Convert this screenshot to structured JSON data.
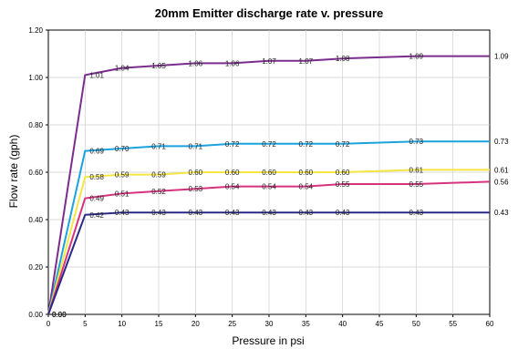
{
  "chart_data": {
    "type": "line",
    "title": "20mm Emitter discharge rate v. pressure",
    "xlabel": "Pressure in psi",
    "ylabel": "Flow rate (gph)",
    "xlim": [
      0,
      60
    ],
    "ylim": [
      0,
      1.2
    ],
    "xticks": [
      "0",
      "5",
      "10",
      "15",
      "20",
      "25",
      "30",
      "35",
      "40",
      "45",
      "50",
      "55",
      "60"
    ],
    "yticks": [
      "0.00",
      "0.20",
      "0.40",
      "0.60",
      "0.80",
      "1.00",
      "1.20"
    ],
    "grid": true,
    "legend": "none",
    "series": [
      {
        "color": "#7b2d8e",
        "x": [
          0,
          5,
          10,
          15,
          20,
          25,
          30,
          35,
          40,
          50,
          60
        ],
        "y": [
          0,
          1.01,
          1.04,
          1.05,
          1.06,
          1.06,
          1.07,
          1.07,
          1.08,
          1.09,
          1.09
        ],
        "labels": [
          "0.00",
          "1.01",
          "1.04",
          "1.05",
          "1.06",
          "1.06",
          "1.07",
          "1.07",
          "1.08",
          "1.09",
          "1.09"
        ]
      },
      {
        "color": "#1aa3de",
        "x": [
          0,
          5,
          10,
          15,
          20,
          25,
          30,
          35,
          40,
          50,
          60
        ],
        "y": [
          0,
          0.69,
          0.7,
          0.71,
          0.71,
          0.72,
          0.72,
          0.72,
          0.72,
          0.73,
          0.73
        ],
        "labels": [
          "0.00",
          "0.69",
          "0.70",
          "0.71",
          "0.71",
          "0.72",
          "0.72",
          "0.72",
          "0.72",
          "0.73",
          "0.73"
        ]
      },
      {
        "color": "#f5e642",
        "x": [
          0,
          5,
          10,
          15,
          20,
          25,
          30,
          35,
          40,
          50,
          60
        ],
        "y": [
          0,
          0.58,
          0.59,
          0.59,
          0.6,
          0.6,
          0.6,
          0.6,
          0.6,
          0.61,
          0.61
        ],
        "labels": [
          "0.00",
          "0.58",
          "0.59",
          "0.59",
          "0.60",
          "0.60",
          "0.60",
          "0.60",
          "0.60",
          "0.61",
          "0.61"
        ]
      },
      {
        "color": "#d6337f",
        "x": [
          0,
          5,
          10,
          15,
          20,
          25,
          30,
          35,
          40,
          50,
          60
        ],
        "y": [
          0,
          0.49,
          0.51,
          0.52,
          0.53,
          0.54,
          0.54,
          0.54,
          0.55,
          0.55,
          0.56
        ],
        "labels": [
          "0.00",
          "0.49",
          "0.51",
          "0.52",
          "0.53",
          "0.54",
          "0.54",
          "0.54",
          "0.55",
          "0.55",
          "0.56"
        ]
      },
      {
        "color": "#2a2a86",
        "x": [
          0,
          5,
          10,
          15,
          20,
          25,
          30,
          35,
          40,
          50,
          60
        ],
        "y": [
          0,
          0.42,
          0.43,
          0.43,
          0.43,
          0.43,
          0.43,
          0.43,
          0.43,
          0.43,
          0.43
        ],
        "labels": [
          "0.00",
          "0.42",
          "0.43",
          "0.43",
          "0.43",
          "0.43",
          "0.43",
          "0.43",
          "0.43",
          "0.43",
          "0.43"
        ]
      }
    ]
  }
}
